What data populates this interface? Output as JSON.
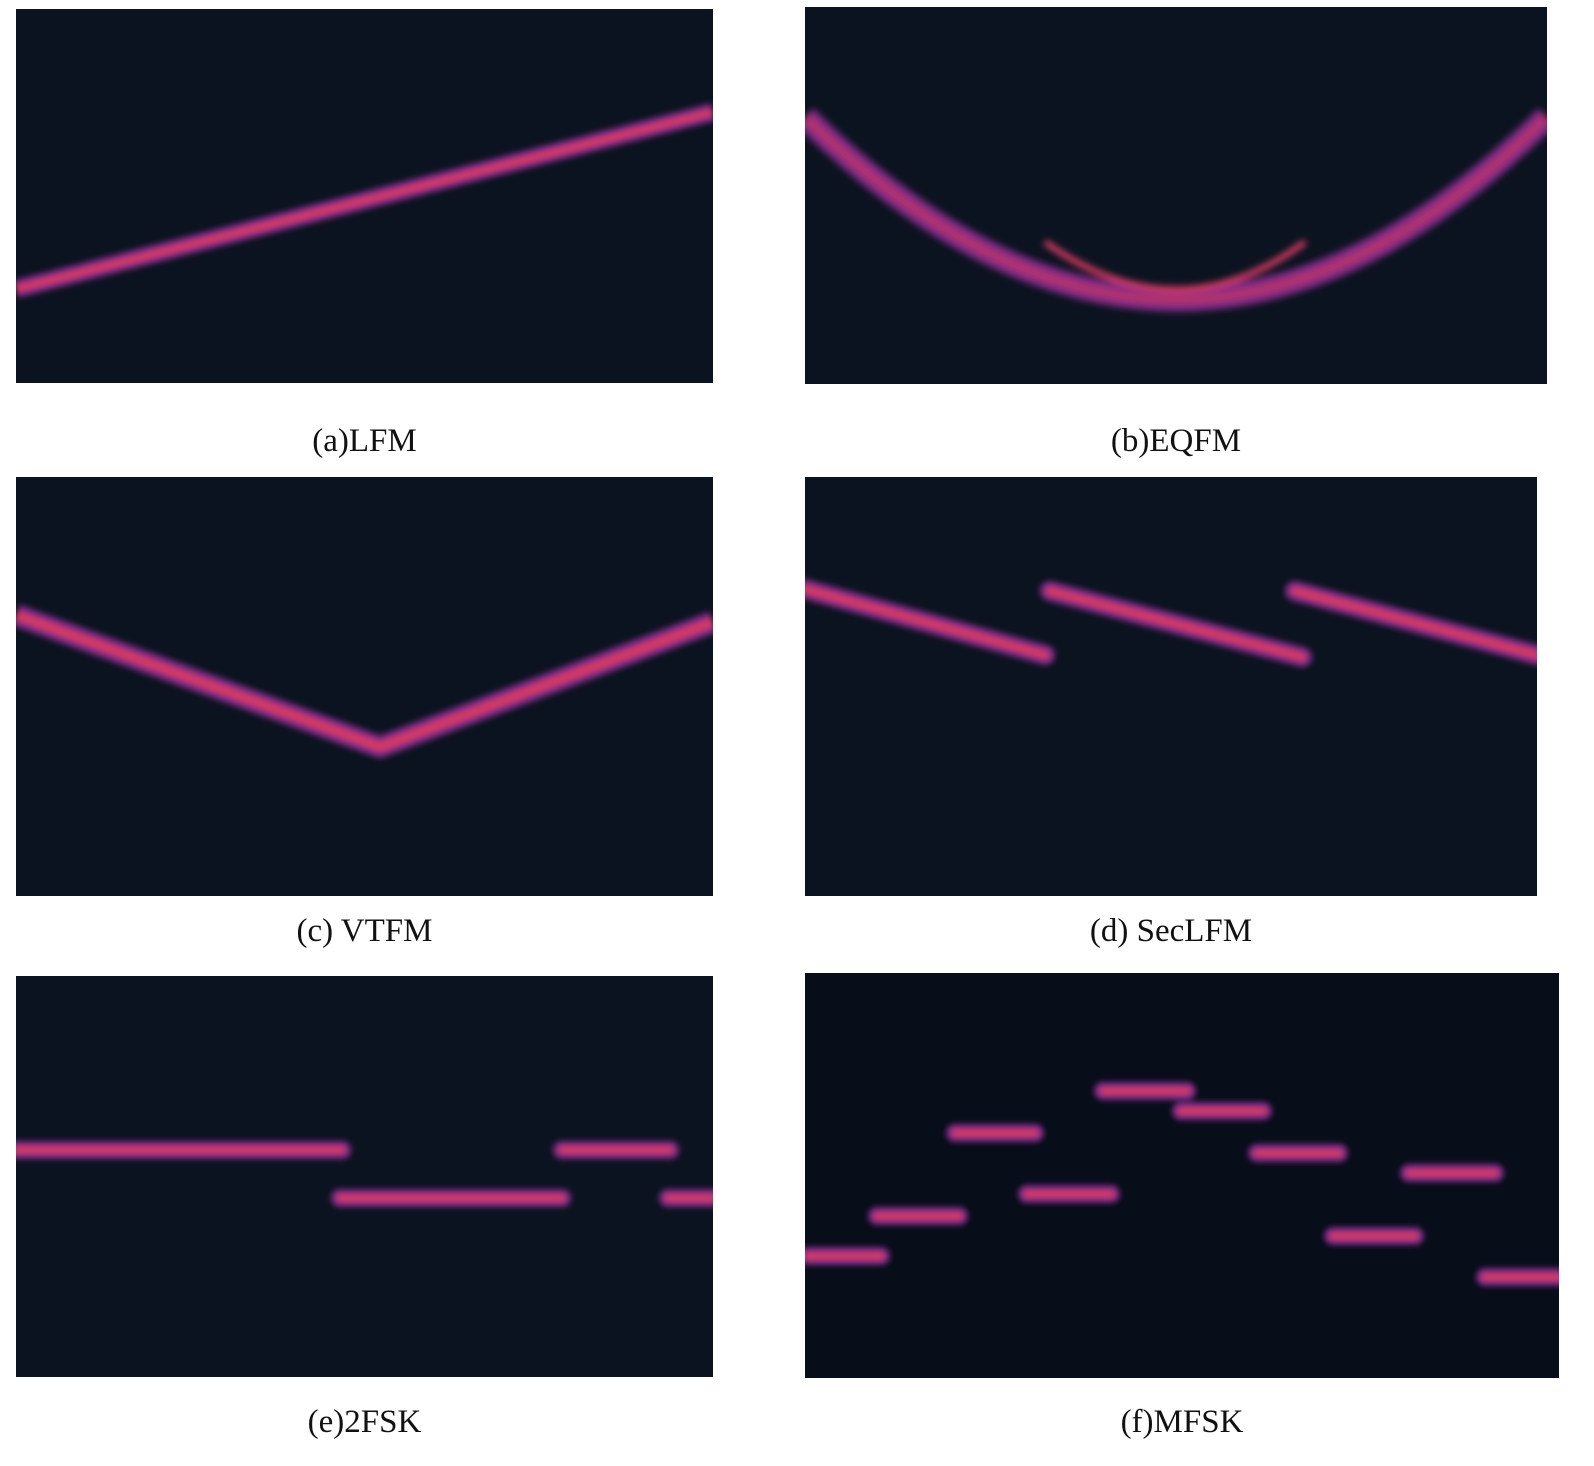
{
  "figure": {
    "background_color": "#0c1320",
    "track_core_color": "#d43a63",
    "track_edge_color": "#7b2a85",
    "panels": [
      {
        "id": "a",
        "caption": "(a)LFM",
        "shape": "linear"
      },
      {
        "id": "b",
        "caption": "(b)EQFM",
        "shape": "quadratic"
      },
      {
        "id": "c",
        "caption": "(c) VTFM",
        "shape": "v-shape"
      },
      {
        "id": "d",
        "caption": "(d) SecLFM",
        "shape": "sawtooth"
      },
      {
        "id": "e",
        "caption": "(e)2FSK",
        "shape": "two-level-steps"
      },
      {
        "id": "f",
        "caption": "(f)MFSK",
        "shape": "multi-level-steps"
      }
    ]
  }
}
